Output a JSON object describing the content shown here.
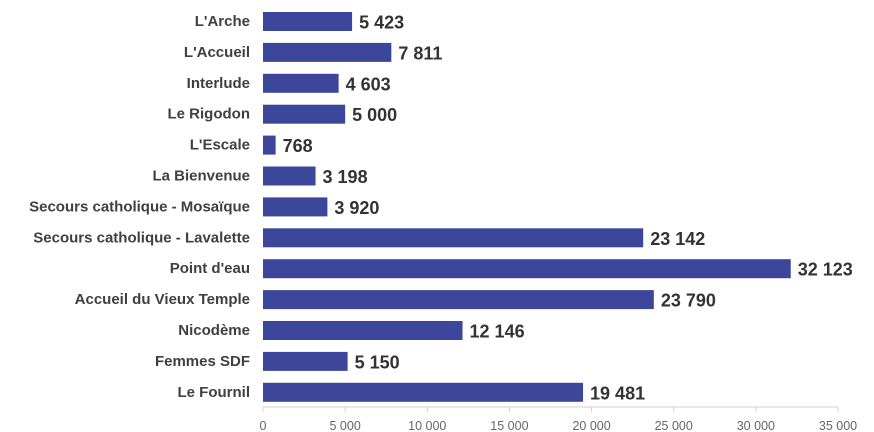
{
  "chart_data": {
    "type": "bar",
    "orientation": "horizontal",
    "categories": [
      "L'Arche",
      "L'Accueil",
      "Interlude",
      "Le Rigodon",
      "L'Escale",
      "La Bienvenue",
      "Secours catholique - Mosaïque",
      "Secours catholique - Lavalette",
      "Point d'eau",
      "Accueil du Vieux Temple",
      "Nicodème",
      "Femmes SDF",
      "Le Fournil"
    ],
    "values": [
      5423,
      7811,
      4603,
      5000,
      768,
      3198,
      3920,
      23142,
      32123,
      23790,
      12146,
      5150,
      19481
    ],
    "value_labels": [
      "5 423",
      "7 811",
      "4 603",
      "5 000",
      "768",
      "3 198",
      "3 920",
      "23 142",
      "32 123",
      "23 790",
      "12 146",
      "5 150",
      "19 481"
    ],
    "xlim": [
      0,
      35000
    ],
    "xticks": [
      0,
      5000,
      10000,
      15000,
      20000,
      25000,
      30000,
      35000
    ],
    "xtick_labels": [
      "0",
      "5 000",
      "10 000",
      "15 000",
      "20 000",
      "25 000",
      "30 000",
      "35 000"
    ],
    "title": "",
    "xlabel": "",
    "ylabel": "",
    "bar_color": "#3C479B",
    "grid": false,
    "legend": "none"
  }
}
